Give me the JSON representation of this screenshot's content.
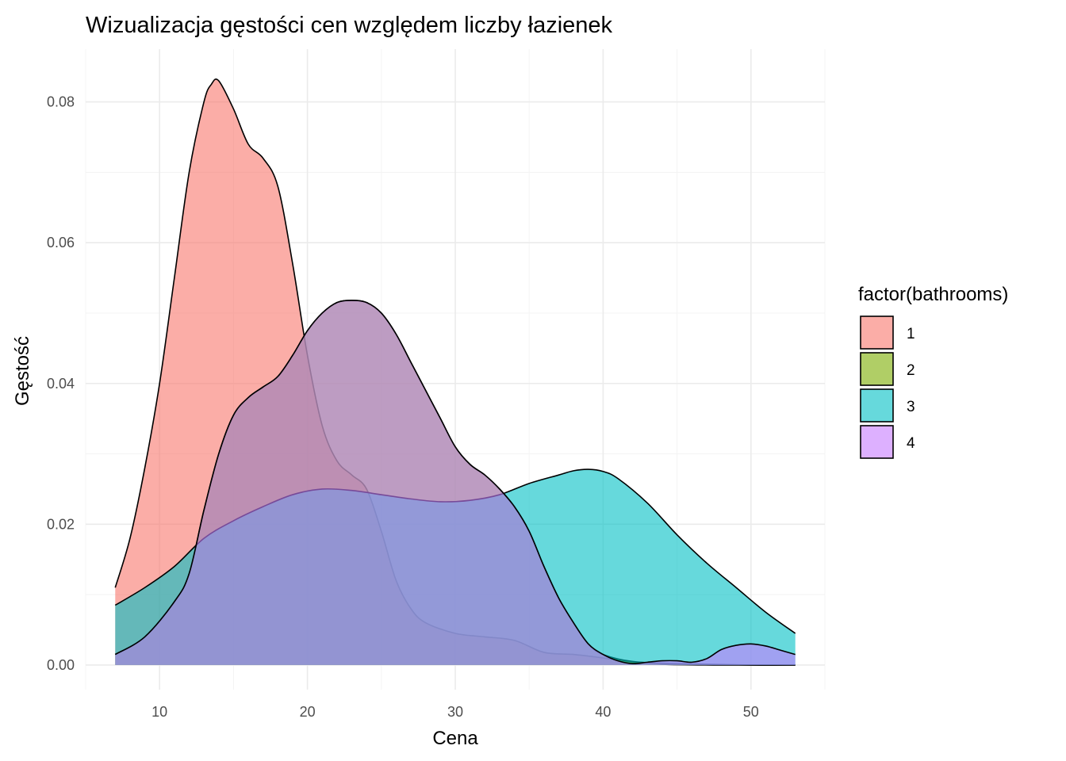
{
  "chart_data": {
    "type": "area",
    "title": "Wizualizacja gęstości cen względem liczby łazienek",
    "xlabel": "Cena",
    "ylabel": "Gęstość",
    "xlim": [
      5,
      55
    ],
    "ylim": [
      -0.0035,
      0.0875
    ],
    "x_ticks": [
      10,
      20,
      30,
      40,
      50
    ],
    "x_tick_labels": [
      "10",
      "20",
      "30",
      "40",
      "50"
    ],
    "y_ticks": [
      0,
      0.02,
      0.04,
      0.06,
      0.08
    ],
    "y_tick_labels": [
      "0.00",
      "0.02",
      "0.04",
      "0.06",
      "0.08"
    ],
    "grid": true,
    "legend": {
      "title": "factor(bathrooms)",
      "position": "right"
    },
    "series": [
      {
        "name": "1",
        "color": "#F8766D",
        "points": [
          [
            7,
            0.011
          ],
          [
            8,
            0.018
          ],
          [
            9,
            0.028
          ],
          [
            10,
            0.04
          ],
          [
            11,
            0.055
          ],
          [
            12,
            0.07
          ],
          [
            13,
            0.08
          ],
          [
            13.5,
            0.0825
          ],
          [
            14,
            0.083
          ],
          [
            15,
            0.079
          ],
          [
            16,
            0.074
          ],
          [
            17,
            0.072
          ],
          [
            18,
            0.068
          ],
          [
            19,
            0.057
          ],
          [
            20,
            0.044
          ],
          [
            21,
            0.034
          ],
          [
            22,
            0.029
          ],
          [
            23,
            0.027
          ],
          [
            24,
            0.025
          ],
          [
            25,
            0.019
          ],
          [
            26,
            0.012
          ],
          [
            27,
            0.008
          ],
          [
            28,
            0.006
          ],
          [
            30,
            0.0045
          ],
          [
            32,
            0.004
          ],
          [
            34,
            0.0035
          ],
          [
            36,
            0.0018
          ],
          [
            38,
            0.0015
          ],
          [
            40,
            0.001
          ],
          [
            42,
            0.0004
          ],
          [
            44,
            0.0001
          ],
          [
            48,
            0.0
          ],
          [
            53,
            0.0
          ]
        ]
      },
      {
        "name": "2",
        "color": "#7CAE00",
        "points": [
          [
            7,
            0.0015
          ],
          [
            9,
            0.004
          ],
          [
            11,
            0.009
          ],
          [
            12,
            0.013
          ],
          [
            13,
            0.022
          ],
          [
            14,
            0.03
          ],
          [
            15,
            0.0355
          ],
          [
            16,
            0.038
          ],
          [
            17,
            0.0395
          ],
          [
            18,
            0.041
          ],
          [
            19,
            0.044
          ],
          [
            20,
            0.0475
          ],
          [
            21,
            0.05
          ],
          [
            22,
            0.0515
          ],
          [
            23,
            0.0518
          ],
          [
            24,
            0.0515
          ],
          [
            25,
            0.05
          ],
          [
            26,
            0.047
          ],
          [
            27,
            0.043
          ],
          [
            28,
            0.039
          ],
          [
            29,
            0.035
          ],
          [
            30,
            0.031
          ],
          [
            31,
            0.0285
          ],
          [
            32,
            0.027
          ],
          [
            33,
            0.025
          ],
          [
            34,
            0.0225
          ],
          [
            35,
            0.019
          ],
          [
            36,
            0.014
          ],
          [
            37,
            0.0095
          ],
          [
            38,
            0.006
          ],
          [
            39,
            0.003
          ],
          [
            40,
            0.0015
          ],
          [
            42,
            0.0005
          ],
          [
            45,
            0.0002
          ],
          [
            50,
            0.0
          ],
          [
            53,
            0.0
          ]
        ]
      },
      {
        "name": "3",
        "color": "#00BFC4",
        "points": [
          [
            7,
            0.0085
          ],
          [
            9,
            0.011
          ],
          [
            11,
            0.014
          ],
          [
            13,
            0.018
          ],
          [
            15,
            0.0205
          ],
          [
            17,
            0.0225
          ],
          [
            19,
            0.0242
          ],
          [
            21,
            0.025
          ],
          [
            23,
            0.0248
          ],
          [
            25,
            0.0242
          ],
          [
            27,
            0.0236
          ],
          [
            29,
            0.0232
          ],
          [
            31,
            0.0234
          ],
          [
            33,
            0.0242
          ],
          [
            35,
            0.0258
          ],
          [
            37,
            0.027
          ],
          [
            38,
            0.0276
          ],
          [
            39,
            0.0278
          ],
          [
            40,
            0.0275
          ],
          [
            41,
            0.0265
          ],
          [
            43,
            0.023
          ],
          [
            45,
            0.0185
          ],
          [
            47,
            0.0145
          ],
          [
            49,
            0.011
          ],
          [
            51,
            0.0075
          ],
          [
            53,
            0.0045
          ]
        ]
      },
      {
        "name": "4",
        "color": "#C77CFF",
        "points": [
          [
            7,
            0.0015
          ],
          [
            9,
            0.004
          ],
          [
            11,
            0.009
          ],
          [
            12,
            0.013
          ],
          [
            13,
            0.022
          ],
          [
            14,
            0.03
          ],
          [
            15,
            0.0355
          ],
          [
            16,
            0.038
          ],
          [
            17,
            0.0395
          ],
          [
            18,
            0.041
          ],
          [
            19,
            0.044
          ],
          [
            20,
            0.0475
          ],
          [
            21,
            0.05
          ],
          [
            22,
            0.0515
          ],
          [
            23,
            0.0518
          ],
          [
            24,
            0.0515
          ],
          [
            25,
            0.05
          ],
          [
            26,
            0.047
          ],
          [
            27,
            0.043
          ],
          [
            28,
            0.039
          ],
          [
            29,
            0.035
          ],
          [
            30,
            0.031
          ],
          [
            31,
            0.0285
          ],
          [
            32,
            0.027
          ],
          [
            33,
            0.025
          ],
          [
            34,
            0.0225
          ],
          [
            35,
            0.019
          ],
          [
            36,
            0.014
          ],
          [
            37,
            0.0095
          ],
          [
            38,
            0.006
          ],
          [
            39,
            0.003
          ],
          [
            40,
            0.0015
          ],
          [
            41,
            0.0006
          ],
          [
            42,
            0.0002
          ],
          [
            43,
            0.0004
          ],
          [
            44,
            0.0006
          ],
          [
            45,
            0.0006
          ],
          [
            46,
            0.0004
          ],
          [
            47,
            0.0009
          ],
          [
            48,
            0.0022
          ],
          [
            49,
            0.0028
          ],
          [
            50,
            0.003
          ],
          [
            51,
            0.0027
          ],
          [
            52,
            0.0021
          ],
          [
            53,
            0.0015
          ]
        ]
      }
    ]
  }
}
